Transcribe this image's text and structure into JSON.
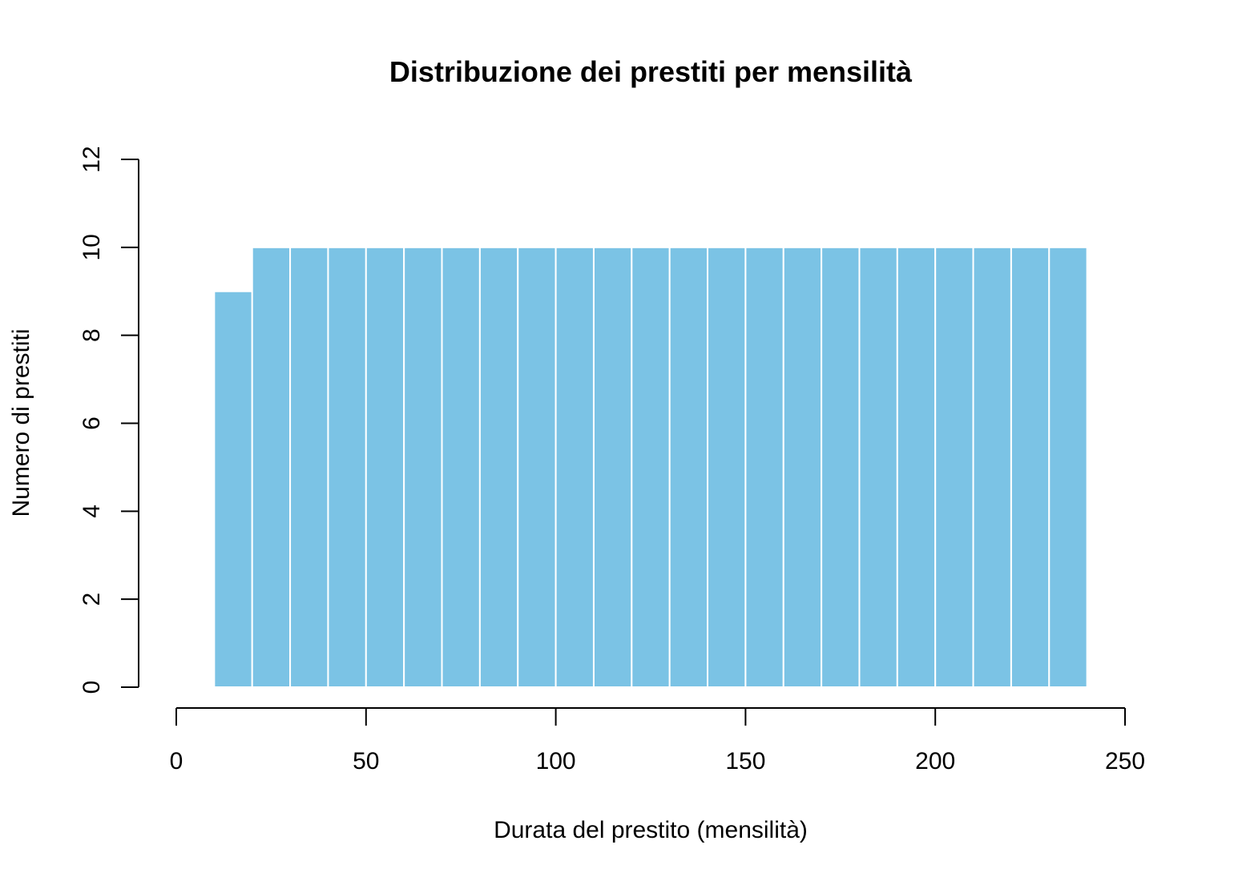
{
  "chart_data": {
    "type": "bar",
    "title": "Distribuzione dei prestiti per mensilità",
    "xlabel": "Durata del prestito (mensilità)",
    "ylabel": "Numero di prestiti",
    "xlim": [
      0,
      250
    ],
    "ylim": [
      0,
      12
    ],
    "x_ticks": [
      0,
      50,
      100,
      150,
      200,
      250
    ],
    "y_ticks": [
      0,
      2,
      4,
      6,
      8,
      10,
      12
    ],
    "bin_edges": [
      10,
      20,
      30,
      40,
      50,
      60,
      70,
      80,
      90,
      100,
      110,
      120,
      130,
      140,
      150,
      160,
      170,
      180,
      190,
      200,
      210,
      220,
      230,
      240
    ],
    "values": [
      9,
      10,
      10,
      10,
      10,
      10,
      10,
      10,
      10,
      10,
      10,
      10,
      10,
      10,
      10,
      10,
      10,
      10,
      10,
      10,
      10,
      10,
      10
    ],
    "grid": false,
    "bar_color": "#7BC3E5",
    "bar_border_color": "#ffffff"
  }
}
